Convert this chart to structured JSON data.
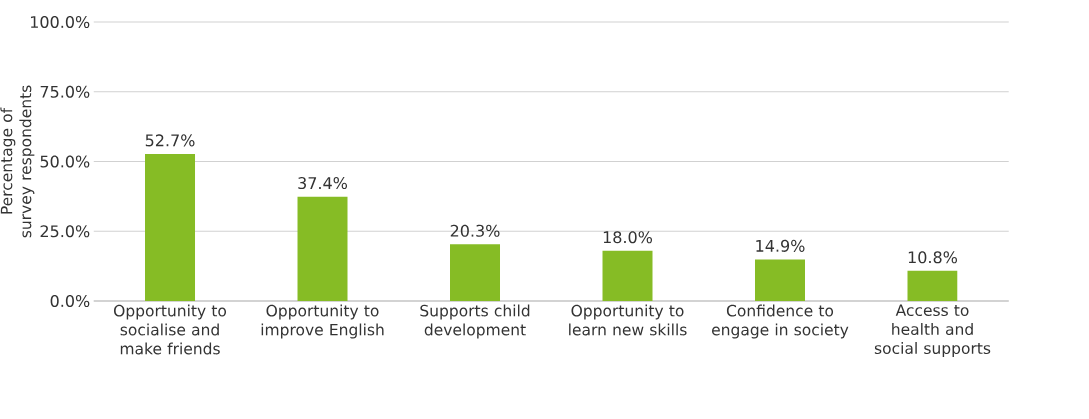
{
  "chart_data": {
    "type": "bar",
    "ylabel": "Percentage of survey respondents",
    "categories": [
      "Opportunity to socialise and make friends",
      "Opportunity to improve English",
      "Supports child development",
      "Opportunity to learn new skills",
      "Confidence to engage in society",
      "Access to health and social supports"
    ],
    "values": [
      52.7,
      37.4,
      20.3,
      18.0,
      14.9,
      10.8
    ],
    "value_labels": [
      "52.7%",
      "37.4%",
      "20.3%",
      "18.0%",
      "14.9%",
      "10.8%"
    ],
    "color": "#86bc25",
    "ylim": [
      0,
      100
    ],
    "yticks": [
      {
        "value": 0,
        "label": "0.0%"
      },
      {
        "value": 25,
        "label": "25.0%"
      },
      {
        "value": 50,
        "label": "50.0%"
      },
      {
        "value": 75,
        "label": "75.0%"
      },
      {
        "value": 100,
        "label": "100.0%"
      }
    ],
    "grid": "y"
  }
}
